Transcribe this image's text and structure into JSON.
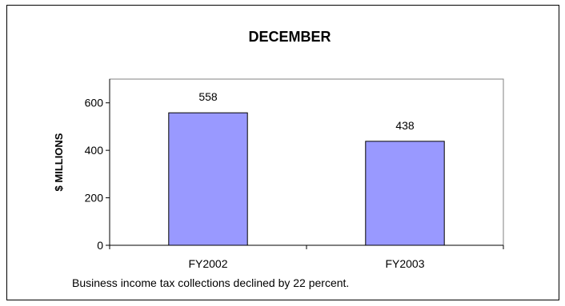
{
  "chart_data": {
    "type": "bar",
    "title": "DECEMBER",
    "ylabel": "$ MILLIONS",
    "xlabel": "",
    "categories": [
      "FY2002",
      "FY2003"
    ],
    "values": [
      558,
      438
    ],
    "data_labels": [
      "558",
      "438"
    ],
    "ylim": [
      0,
      700
    ],
    "yticks": [
      0,
      200,
      400,
      600
    ],
    "ytick_labels": [
      "0",
      "200",
      "400",
      "600"
    ],
    "grid": false,
    "legend": "none",
    "bar_color": "#9999ff",
    "plot_background": "#ffffff",
    "caption": "Business income tax collections declined by 22 percent."
  }
}
